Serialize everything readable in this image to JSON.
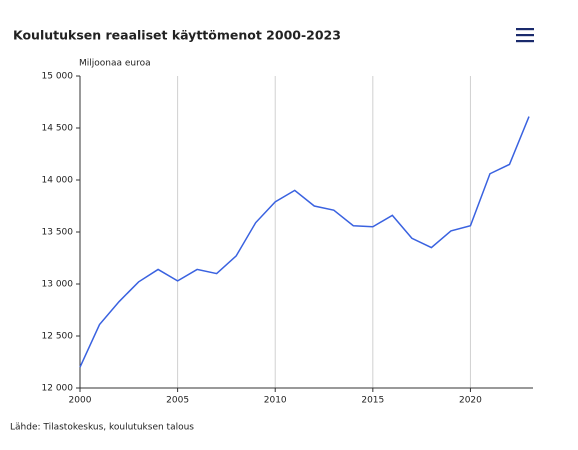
{
  "chart_data": {
    "type": "line",
    "title": "Koulutuksen reaaliset käyttömenot 2000-2023",
    "y_label": "Miljoonaa euroa",
    "source": "Lähde: Tilastokeskus, koulutuksen talous",
    "x": [
      2000,
      2001,
      2002,
      2003,
      2004,
      2005,
      2006,
      2007,
      2008,
      2009,
      2010,
      2011,
      2012,
      2013,
      2014,
      2015,
      2016,
      2017,
      2018,
      2019,
      2020,
      2021,
      2022,
      2023
    ],
    "series": [
      {
        "color": "#3a62e0",
        "values": [
          12200,
          12610,
          12830,
          13020,
          13140,
          13030,
          13140,
          13100,
          13270,
          13590,
          13790,
          13900,
          13750,
          13710,
          13560,
          13550,
          13660,
          13440,
          13350,
          13510,
          13560,
          14060,
          14150,
          14610
        ]
      }
    ],
    "xlim": [
      2000,
      2023
    ],
    "xticks": [
      2000,
      2005,
      2010,
      2015,
      2020
    ],
    "ylim": [
      12000,
      15000
    ],
    "yticks": [
      {
        "value": 12000,
        "label": "12 000"
      },
      {
        "value": 12500,
        "label": "12 500"
      },
      {
        "value": 13000,
        "label": "13 000"
      },
      {
        "value": 13500,
        "label": "13 500"
      },
      {
        "value": 14000,
        "label": "14 000"
      },
      {
        "value": 14500,
        "label": "14 500"
      },
      {
        "value": 15000,
        "label": "15 000"
      }
    ],
    "grid": "x"
  }
}
